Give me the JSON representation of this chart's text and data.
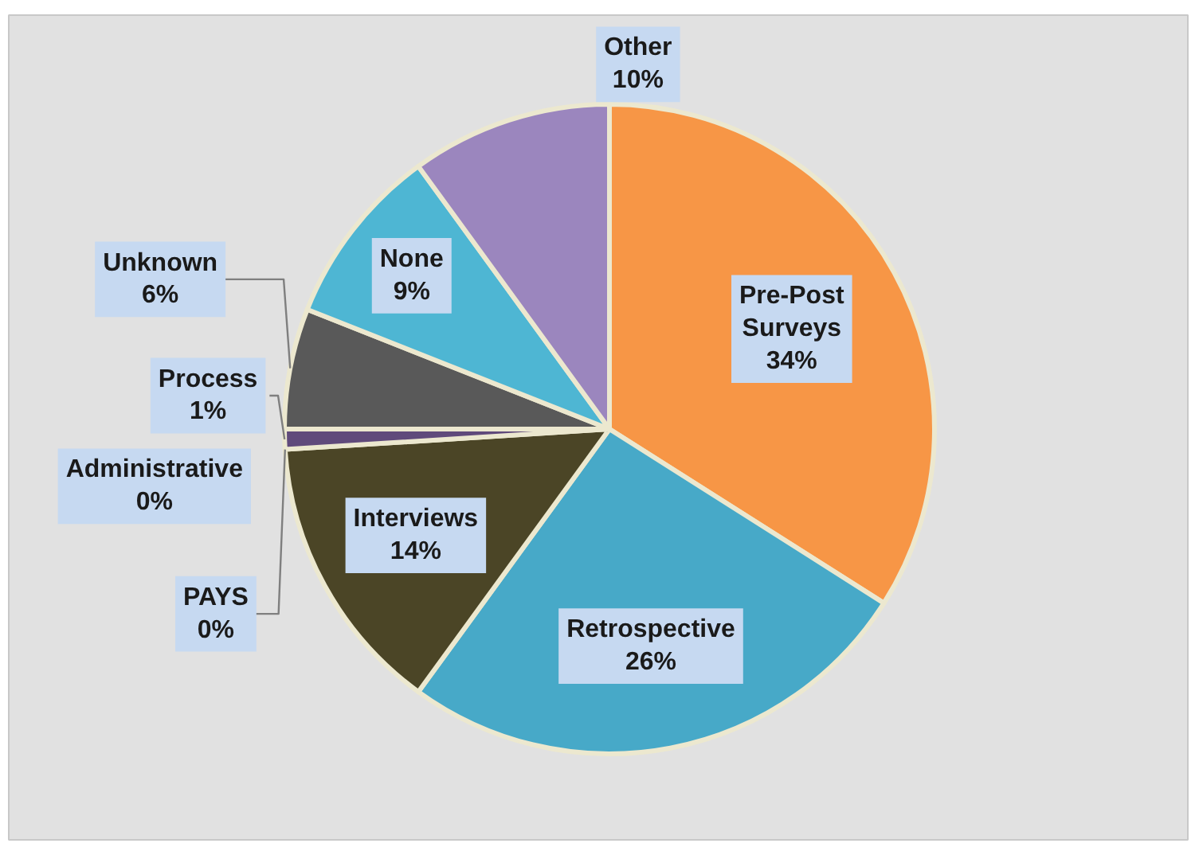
{
  "chart_data": {
    "type": "pie",
    "categories": [
      "Pre-Post Surveys",
      "Retrospective",
      "Interviews",
      "PAYS",
      "Administrative",
      "Process",
      "Unknown",
      "None",
      "Other"
    ],
    "values": [
      34,
      26,
      14,
      0,
      0,
      1,
      6,
      9,
      10
    ],
    "colors": [
      "#f79646",
      "#47a9c8",
      "#4b4526",
      null,
      null,
      "#604a7b",
      "#595959",
      "#4eb6d3",
      "#9b86be"
    ],
    "value_labels": [
      "34%",
      "26%",
      "14%",
      "0%",
      "0%",
      "1%",
      "6%",
      "9%",
      "10%"
    ]
  }
}
